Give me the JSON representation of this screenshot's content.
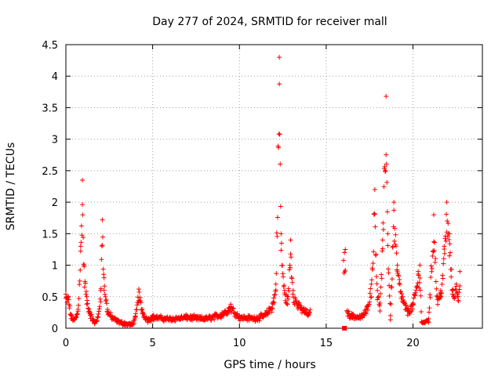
{
  "chart_data": {
    "type": "scatter",
    "title": "Day 277 of 2024, SRMTID for receiver mall",
    "xlabel": "GPS time / hours",
    "ylabel": "SRMTID / TECUs",
    "xlim": [
      0,
      24
    ],
    "ylim": [
      0,
      4.5
    ],
    "x_ticks": [
      "0",
      "5",
      "10",
      "15",
      "20"
    ],
    "y_ticks": [
      "0",
      "0.5",
      "1",
      "1.5",
      "2",
      "2.5",
      "3",
      "3.5",
      "4",
      "4.5"
    ],
    "grid": true,
    "marker": "plus",
    "color": "#ff0000",
    "series": [
      {
        "name": "SRMTID",
        "profile": [
          [
            0.0,
            0.54
          ],
          [
            0.15,
            0.5
          ],
          [
            0.3,
            0.2
          ],
          [
            0.5,
            0.15
          ],
          [
            0.7,
            0.3
          ],
          [
            0.85,
            1.3
          ],
          [
            0.95,
            2.35
          ],
          [
            1.05,
            1.0
          ],
          [
            1.2,
            0.5
          ],
          [
            1.4,
            0.25
          ],
          [
            1.65,
            0.1
          ],
          [
            1.85,
            0.18
          ],
          [
            2.0,
            0.6
          ],
          [
            2.1,
            1.72
          ],
          [
            2.2,
            0.8
          ],
          [
            2.4,
            0.3
          ],
          [
            2.7,
            0.18
          ],
          [
            3.0,
            0.12
          ],
          [
            3.4,
            0.08
          ],
          [
            3.8,
            0.06
          ],
          [
            4.0,
            0.18
          ],
          [
            4.2,
            0.62
          ],
          [
            4.4,
            0.3
          ],
          [
            4.7,
            0.15
          ],
          [
            5.0,
            0.2
          ],
          [
            6.0,
            0.17
          ],
          [
            7.0,
            0.2
          ],
          [
            8.0,
            0.17
          ],
          [
            9.0,
            0.25
          ],
          [
            9.5,
            0.38
          ],
          [
            10.0,
            0.2
          ],
          [
            11.0,
            0.18
          ],
          [
            11.5,
            0.24
          ],
          [
            11.9,
            0.4
          ],
          [
            12.1,
            0.7
          ],
          [
            12.3,
            4.3
          ],
          [
            12.4,
            1.5
          ],
          [
            12.6,
            0.6
          ],
          [
            12.8,
            0.5
          ],
          [
            12.95,
            1.4
          ],
          [
            13.1,
            0.6
          ],
          [
            13.4,
            0.4
          ],
          [
            13.8,
            0.3
          ],
          [
            14.0,
            0.25
          ],
          [
            16.1,
            1.25
          ],
          [
            16.2,
            0.28
          ],
          [
            16.5,
            0.22
          ],
          [
            17.0,
            0.2
          ],
          [
            17.3,
            0.3
          ],
          [
            17.6,
            0.7
          ],
          [
            17.8,
            2.2
          ],
          [
            17.95,
            0.6
          ],
          [
            18.1,
            0.4
          ],
          [
            18.25,
            1.4
          ],
          [
            18.45,
            3.68
          ],
          [
            18.55,
            1.5
          ],
          [
            18.7,
            0.2
          ],
          [
            18.9,
            2.0
          ],
          [
            19.1,
            1.0
          ],
          [
            19.4,
            0.5
          ],
          [
            19.7,
            0.3
          ],
          [
            20.0,
            0.4
          ],
          [
            20.3,
            0.9
          ],
          [
            20.4,
            1.0
          ],
          [
            20.5,
            0.1
          ],
          [
            20.9,
            0.15
          ],
          [
            21.2,
            1.8
          ],
          [
            21.4,
            0.5
          ],
          [
            21.6,
            0.6
          ],
          [
            21.8,
            1.3
          ],
          [
            21.95,
            2.0
          ],
          [
            22.1,
            1.5
          ],
          [
            22.3,
            0.6
          ],
          [
            22.5,
            0.7
          ],
          [
            22.6,
            0.5
          ],
          [
            22.7,
            0.9
          ]
        ],
        "gaps": [
          [
            14.1,
            16.0
          ],
          [
            16.11,
            16.19
          ]
        ],
        "isolated_points": [
          [
            16.05,
            0.0
          ]
        ]
      }
    ]
  }
}
